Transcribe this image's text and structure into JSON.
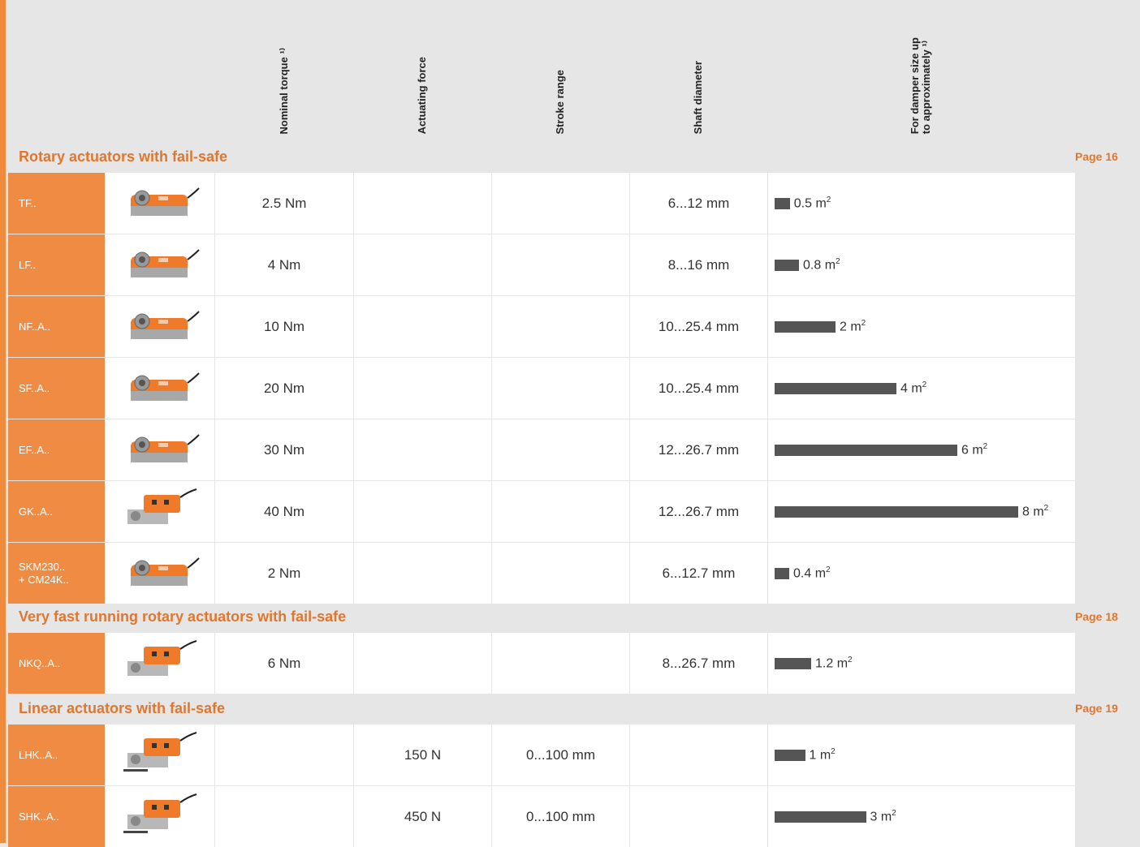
{
  "headers": {
    "torque": "Nominal torque ¹⁾",
    "force": "Actuating force",
    "stroke": "Stroke range",
    "shaft": "Shaft diameter",
    "damper": "For damper size up\nto approximately ¹⁾"
  },
  "sections": [
    {
      "title": "Rotary actuators with fail-safe",
      "page": "Page 16"
    },
    {
      "title": "Very fast running rotary actuators with fail-safe",
      "page": "Page 18"
    },
    {
      "title": "Linear actuators with fail-safe",
      "page": "Page 19"
    }
  ],
  "rows": [
    {
      "name": "TF..",
      "torque": "2.5 Nm",
      "force": "",
      "stroke": "",
      "shaft": "6...12 mm",
      "damper_value": 0.5,
      "damper_label": "0.5 m",
      "icon": "actuator-small-icon"
    },
    {
      "name": "LF..",
      "torque": "4 Nm",
      "force": "",
      "stroke": "",
      "shaft": "8...16 mm",
      "damper_value": 0.8,
      "damper_label": "0.8 m",
      "icon": "actuator-icon"
    },
    {
      "name": "NF..A..",
      "torque": "10 Nm",
      "force": "",
      "stroke": "",
      "shaft": "10...25.4 mm",
      "damper_value": 2,
      "damper_label": "2 m",
      "icon": "actuator-icon"
    },
    {
      "name": "SF..A..",
      "torque": "20 Nm",
      "force": "",
      "stroke": "",
      "shaft": "10...25.4 mm",
      "damper_value": 4,
      "damper_label": "4 m",
      "icon": "actuator-icon"
    },
    {
      "name": "EF..A..",
      "torque": "30 Nm",
      "force": "",
      "stroke": "",
      "shaft": "12...26.7 mm",
      "damper_value": 6,
      "damper_label": "6 m",
      "icon": "actuator-large-icon"
    },
    {
      "name": "GK..A..",
      "torque": "40 Nm",
      "force": "",
      "stroke": "",
      "shaft": "12...26.7 mm",
      "damper_value": 8,
      "damper_label": "8 m",
      "icon": "actuator-gear-icon"
    },
    {
      "name": "SKM230.. + CM24K..",
      "torque": "2 Nm",
      "force": "",
      "stroke": "",
      "shaft": "6...12.7 mm",
      "damper_value": 0.4,
      "damper_label": "0.4 m",
      "icon": "actuator-module-icon"
    },
    {
      "name": "NKQ..A..",
      "torque": "6 Nm",
      "force": "",
      "stroke": "",
      "shaft": "8...26.7 mm",
      "damper_value": 1.2,
      "damper_label": "1.2 m",
      "icon": "actuator-gear-icon"
    },
    {
      "name": "LHK..A..",
      "torque": "",
      "force": "150 N",
      "stroke": "0...100 mm",
      "shaft": "",
      "damper_value": 1,
      "damper_label": "1 m",
      "icon": "linear-actuator-icon"
    },
    {
      "name": "SHK..A..",
      "torque": "",
      "force": "450 N",
      "stroke": "0...100 mm",
      "shaft": "",
      "damper_value": 3,
      "damper_label": "3 m",
      "icon": "linear-actuator-icon"
    }
  ],
  "unit_sup": "2",
  "colors": {
    "accent": "#ef8b42",
    "bar": "#555555",
    "section_text": "#e0772f"
  }
}
